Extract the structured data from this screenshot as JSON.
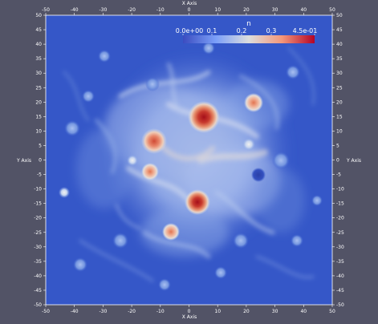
{
  "scene": {
    "colors": {
      "background": "#525366",
      "field_base": "#3557c8",
      "axis": "#ffffff"
    }
  },
  "axes": {
    "x_title_top": "X Axis",
    "x_title_bottom": "X Axis",
    "y_title_left": "Y Axis",
    "y_title_right": "Y Axis",
    "x_range": [
      -50,
      50
    ],
    "y_range": [
      -50,
      50
    ],
    "x_ticks": [
      "-50",
      "-40",
      "-30",
      "-20",
      "-10",
      "0",
      "10",
      "20",
      "30",
      "40",
      "50"
    ],
    "y_ticks": [
      "50",
      "45",
      "40",
      "35",
      "30",
      "25",
      "20",
      "15",
      "10",
      "5",
      "0",
      "-5",
      "-10",
      "-15",
      "-20",
      "-25",
      "-30",
      "-35",
      "-40",
      "-45",
      "-50"
    ]
  },
  "colorbar": {
    "title": "n",
    "labels": [
      "0.0e+00",
      "0.1",
      "0.2",
      "0.3",
      "4.5e-01"
    ],
    "colormap": "cool-to-warm"
  }
}
